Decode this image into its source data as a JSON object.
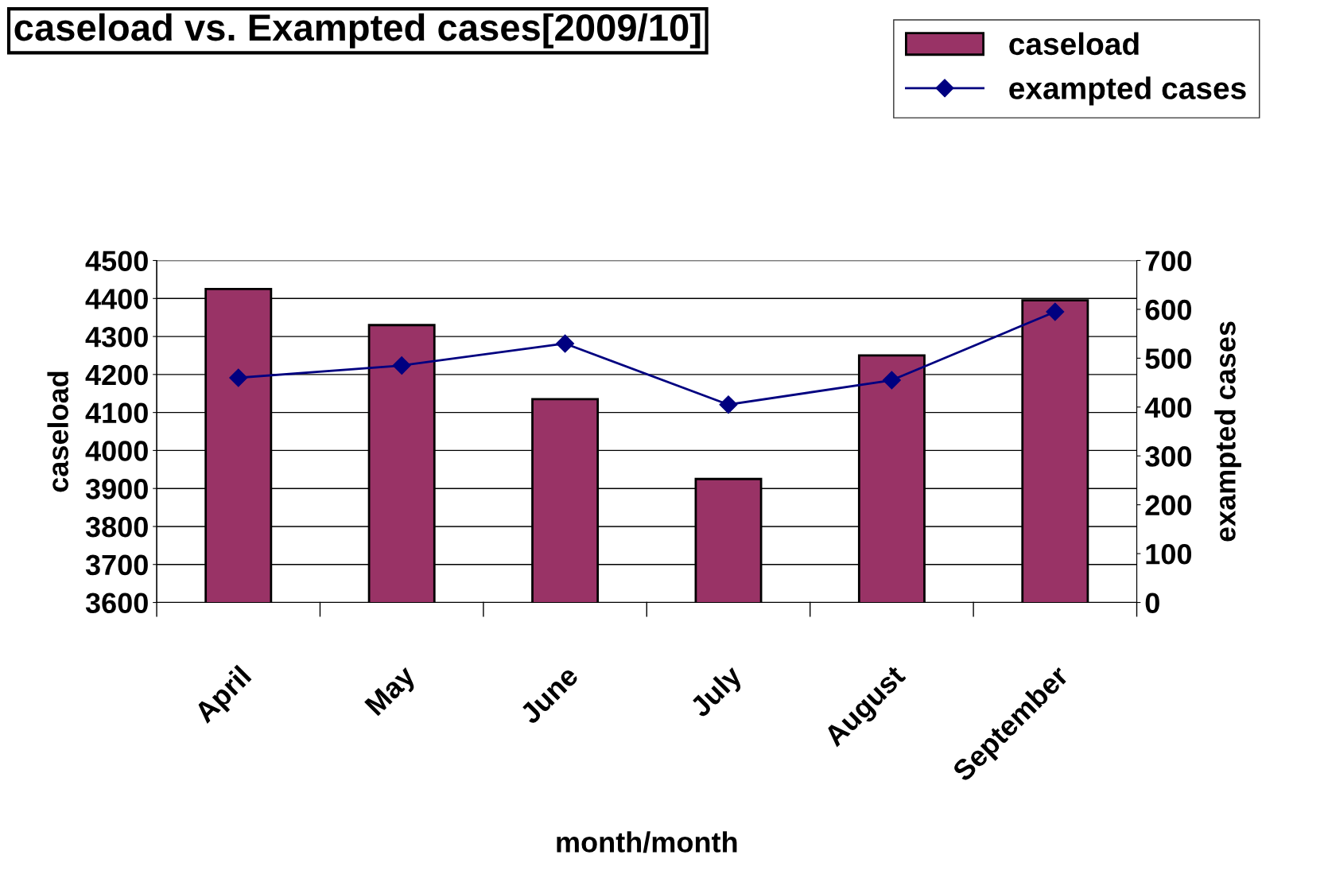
{
  "chart_data": {
    "type": "bar",
    "title": "caseload vs. Exampted cases[2009/10]",
    "xlabel": "month/month",
    "ylabel": "caseload",
    "y2label": "exampted cases",
    "categories": [
      "April",
      "May",
      "June",
      "July",
      "August",
      "September"
    ],
    "series": [
      {
        "name": "caseload",
        "color": "#993366",
        "values": [
          4425,
          4330,
          4135,
          3925,
          4250,
          4395
        ]
      },
      {
        "name": "exampted cases",
        "type": "line",
        "axis": "y2",
        "color": "#000080",
        "marker": "diamond",
        "values": [
          460,
          485,
          530,
          405,
          455,
          595
        ]
      }
    ],
    "ylim": [
      3600,
      4500
    ],
    "yticks": [
      3600,
      3700,
      3800,
      3900,
      4000,
      4100,
      4200,
      4300,
      4400,
      4500
    ],
    "y2lim": [
      0,
      700
    ],
    "y2ticks": [
      0,
      100,
      200,
      300,
      400,
      500,
      600,
      700
    ],
    "grid": "y",
    "legend": "top right"
  }
}
